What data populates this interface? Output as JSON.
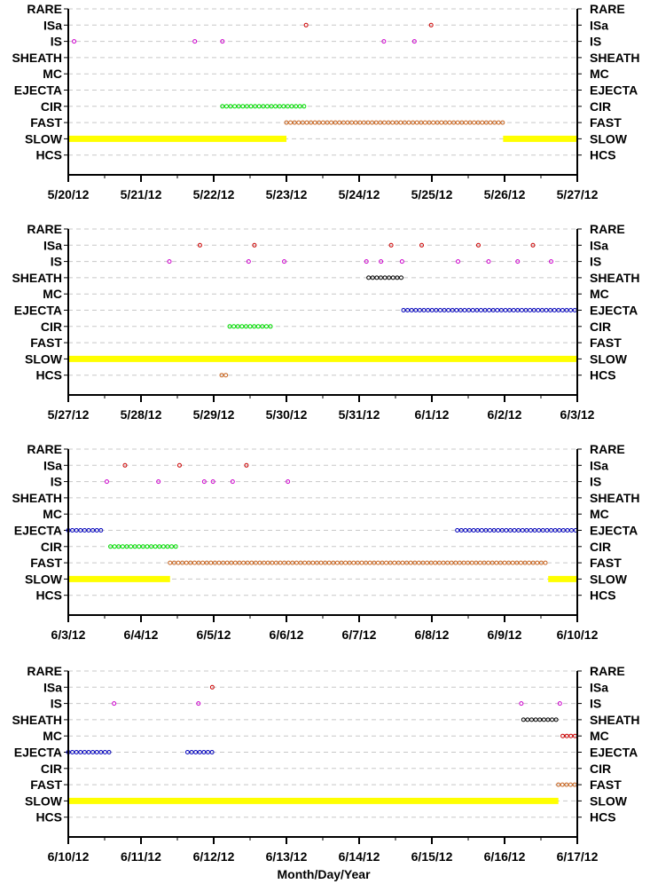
{
  "chart_data": [
    {
      "type": "scatter",
      "x_ticks": [
        "5/20/12",
        "5/21/12",
        "5/22/12",
        "5/23/12",
        "5/24/12",
        "5/25/12",
        "5/26/12",
        "5/27/12"
      ],
      "categories": [
        "RARE",
        "ISa",
        "IS",
        "SHEATH",
        "MC",
        "EJECTA",
        "CIR",
        "FAST",
        "SLOW",
        "HCS"
      ],
      "xlim": [
        0,
        7
      ],
      "grid": "dashed-horizontal",
      "series": [
        {
          "category": "ISa",
          "color": "#cc0000",
          "style": "points",
          "points": [
            3.27,
            4.99
          ]
        },
        {
          "category": "IS",
          "color": "#cc00cc",
          "style": "points",
          "points": [
            0.08,
            1.74,
            2.12,
            4.34,
            4.76
          ]
        },
        {
          "category": "CIR",
          "color": "#00dd00",
          "style": "run",
          "ranges": [
            [
              2.12,
              3.27
            ]
          ]
        },
        {
          "category": "FAST",
          "color": "#c8641e",
          "style": "run",
          "ranges": [
            [
              3.0,
              5.98
            ]
          ]
        },
        {
          "category": "SLOW",
          "color": "#ffff00",
          "style": "bar",
          "ranges": [
            [
              0.0,
              3.0
            ],
            [
              5.98,
              7.0
            ]
          ]
        }
      ]
    },
    {
      "type": "scatter",
      "x_ticks": [
        "5/27/12",
        "5/28/12",
        "5/29/12",
        "5/30/12",
        "5/31/12",
        "6/1/12",
        "6/2/12",
        "6/3/12"
      ],
      "categories": [
        "RARE",
        "ISa",
        "IS",
        "SHEATH",
        "MC",
        "EJECTA",
        "CIR",
        "FAST",
        "SLOW",
        "HCS"
      ],
      "xlim": [
        0,
        7
      ],
      "grid": "dashed-horizontal",
      "series": [
        {
          "category": "ISa",
          "color": "#cc0000",
          "style": "points",
          "points": [
            1.81,
            2.56,
            4.44,
            4.86,
            5.64,
            6.39
          ]
        },
        {
          "category": "IS",
          "color": "#cc00cc",
          "style": "points",
          "points": [
            1.39,
            2.48,
            2.97,
            4.1,
            4.3,
            4.59,
            5.36,
            5.78,
            6.18,
            6.64
          ]
        },
        {
          "category": "SHEATH",
          "color": "#000000",
          "style": "run",
          "ranges": [
            [
              4.13,
              4.61
            ]
          ]
        },
        {
          "category": "EJECTA",
          "color": "#0000bb",
          "style": "run",
          "ranges": [
            [
              4.61,
              7.0
            ]
          ]
        },
        {
          "category": "CIR",
          "color": "#00dd00",
          "style": "run",
          "ranges": [
            [
              2.22,
              2.83
            ]
          ]
        },
        {
          "category": "SLOW",
          "color": "#ffff00",
          "style": "bar",
          "ranges": [
            [
              0.0,
              7.0
            ]
          ]
        },
        {
          "category": "HCS",
          "color": "#c8641e",
          "style": "run",
          "ranges": [
            [
              2.11,
              2.17
            ]
          ]
        }
      ]
    },
    {
      "type": "scatter",
      "x_ticks": [
        "6/3/12",
        "6/4/12",
        "6/5/12",
        "6/6/12",
        "6/7/12",
        "6/8/12",
        "6/9/12",
        "6/10/12"
      ],
      "categories": [
        "RARE",
        "ISa",
        "IS",
        "SHEATH",
        "MC",
        "EJECTA",
        "CIR",
        "FAST",
        "SLOW",
        "HCS"
      ],
      "xlim": [
        0,
        7
      ],
      "grid": "dashed-horizontal",
      "series": [
        {
          "category": "ISa",
          "color": "#cc0000",
          "style": "points",
          "points": [
            0.78,
            1.53,
            2.45
          ]
        },
        {
          "category": "IS",
          "color": "#cc00cc",
          "style": "points",
          "points": [
            0.53,
            1.24,
            1.87,
            1.99,
            2.26,
            3.02
          ]
        },
        {
          "category": "EJECTA",
          "color": "#0000bb",
          "style": "run",
          "ranges": [
            [
              0.0,
              0.45
            ],
            [
              5.35,
              7.0
            ]
          ]
        },
        {
          "category": "CIR",
          "color": "#00dd00",
          "style": "run",
          "ranges": [
            [
              0.58,
              1.52
            ]
          ]
        },
        {
          "category": "FAST",
          "color": "#c8641e",
          "style": "run",
          "ranges": [
            [
              1.4,
              6.6
            ]
          ]
        },
        {
          "category": "SLOW",
          "color": "#ffff00",
          "style": "bar",
          "ranges": [
            [
              0.0,
              1.4
            ],
            [
              6.6,
              7.0
            ]
          ]
        }
      ]
    },
    {
      "type": "scatter",
      "x_ticks": [
        "6/10/12",
        "6/11/12",
        "6/12/12",
        "6/13/12",
        "6/14/12",
        "6/15/12",
        "6/16/12",
        "6/17/12"
      ],
      "categories": [
        "RARE",
        "ISa",
        "IS",
        "SHEATH",
        "MC",
        "EJECTA",
        "CIR",
        "FAST",
        "SLOW",
        "HCS"
      ],
      "xlim": [
        0,
        7
      ],
      "grid": "dashed-horizontal",
      "xlabel": "Month/Day/Year",
      "series": [
        {
          "category": "ISa",
          "color": "#cc0000",
          "style": "points",
          "points": [
            1.98
          ]
        },
        {
          "category": "IS",
          "color": "#cc00cc",
          "style": "points",
          "points": [
            0.63,
            1.79,
            6.23,
            6.76
          ]
        },
        {
          "category": "SHEATH",
          "color": "#000000",
          "style": "run",
          "ranges": [
            [
              6.26,
              6.76
            ]
          ]
        },
        {
          "category": "MC",
          "color": "#cc0000",
          "style": "run",
          "ranges": [
            [
              6.8,
              7.0
            ]
          ]
        },
        {
          "category": "EJECTA",
          "color": "#0000bb",
          "style": "run",
          "ranges": [
            [
              0.0,
              0.6
            ],
            [
              1.64,
              1.99
            ]
          ]
        },
        {
          "category": "FAST",
          "color": "#c8641e",
          "style": "run",
          "ranges": [
            [
              6.74,
              7.0
            ]
          ]
        },
        {
          "category": "SLOW",
          "color": "#ffff00",
          "style": "bar",
          "ranges": [
            [
              0.0,
              6.74
            ]
          ]
        }
      ]
    }
  ]
}
